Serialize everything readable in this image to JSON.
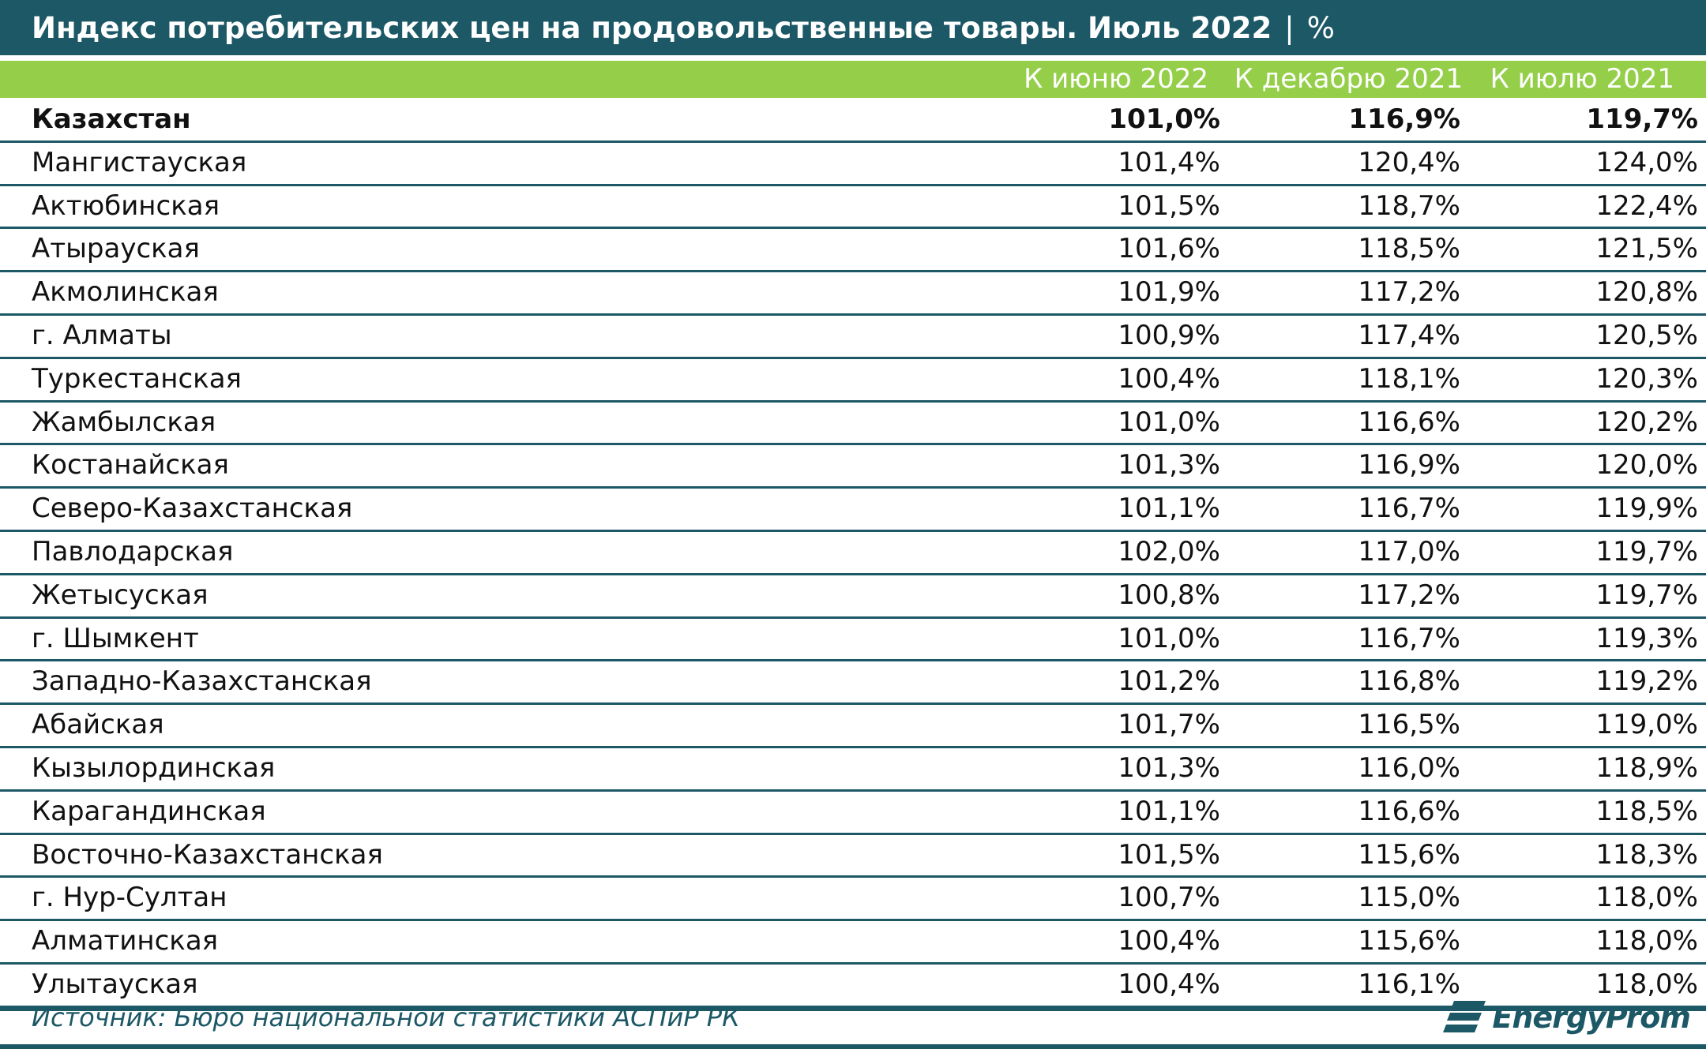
{
  "header": {
    "title": "Индекс потребительских цен на продовольственные товары. Июль 2022",
    "separator": "|",
    "unit": "%"
  },
  "chart_data": {
    "type": "table",
    "columns": [
      "К июню 2022",
      "К декабрю 2021",
      "К июлю 2021"
    ],
    "rows": [
      {
        "region": "Казахстан",
        "values": [
          "101,0%",
          "116,9%",
          "119,7%"
        ],
        "bold": true
      },
      {
        "region": "Мангистауская",
        "values": [
          "101,4%",
          "120,4%",
          "124,0%"
        ]
      },
      {
        "region": "Актюбинская",
        "values": [
          "101,5%",
          "118,7%",
          "122,4%"
        ]
      },
      {
        "region": "Атырауская",
        "values": [
          "101,6%",
          "118,5%",
          "121,5%"
        ]
      },
      {
        "region": "Акмолинская",
        "values": [
          "101,9%",
          "117,2%",
          "120,8%"
        ]
      },
      {
        "region": "г. Алматы",
        "values": [
          "100,9%",
          "117,4%",
          "120,5%"
        ]
      },
      {
        "region": "Туркестанская",
        "values": [
          "100,4%",
          "118,1%",
          "120,3%"
        ]
      },
      {
        "region": "Жамбылская",
        "values": [
          "101,0%",
          "116,6%",
          "120,2%"
        ]
      },
      {
        "region": "Костанайская",
        "values": [
          "101,3%",
          "116,9%",
          "120,0%"
        ]
      },
      {
        "region": "Северо-Казахстанская",
        "values": [
          "101,1%",
          "116,7%",
          "119,9%"
        ]
      },
      {
        "region": "Павлодарская",
        "values": [
          "102,0%",
          "117,0%",
          "119,7%"
        ]
      },
      {
        "region": "Жетысуская",
        "values": [
          "100,8%",
          "117,2%",
          "119,7%"
        ]
      },
      {
        "region": "г. Шымкент",
        "values": [
          "101,0%",
          "116,7%",
          "119,3%"
        ]
      },
      {
        "region": "Западно-Казахстанская",
        "values": [
          "101,2%",
          "116,8%",
          "119,2%"
        ]
      },
      {
        "region": "Абайская",
        "values": [
          "101,7%",
          "116,5%",
          "119,0%"
        ]
      },
      {
        "region": "Кызылординская",
        "values": [
          "101,3%",
          "116,0%",
          "118,9%"
        ]
      },
      {
        "region": "Карагандинская",
        "values": [
          "101,1%",
          "116,6%",
          "118,5%"
        ]
      },
      {
        "region": "Восточно-Казахстанская",
        "values": [
          "101,5%",
          "115,6%",
          "118,3%"
        ]
      },
      {
        "region": "г. Нур-Султан",
        "values": [
          "100,7%",
          "115,0%",
          "118,0%"
        ]
      },
      {
        "region": "Алматинская",
        "values": [
          "100,4%",
          "115,6%",
          "118,0%"
        ]
      },
      {
        "region": "Улытауская",
        "values": [
          "100,4%",
          "116,1%",
          "118,0%"
        ]
      }
    ]
  },
  "footer": {
    "source": "Источник: Бюро национальной статистики АСПиР РК",
    "logo_text": "EnergyProm",
    "logo_icon": "energyprom-logo-icon"
  },
  "colors": {
    "title_bg": "#1c5866",
    "header_bg": "#95cf4a",
    "row_border": "#1c5866"
  }
}
